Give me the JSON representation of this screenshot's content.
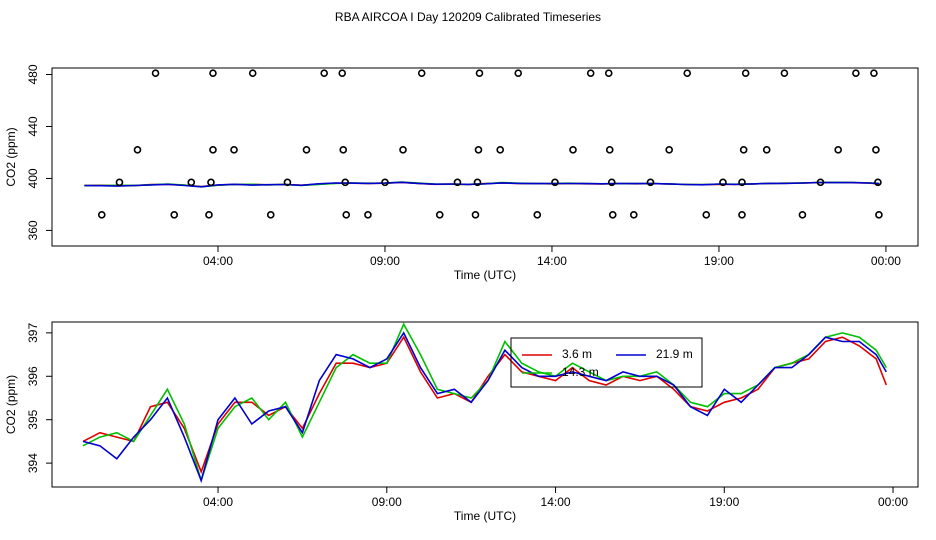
{
  "title": "RBA AIRCOA I  Day 120209  Calibrated Timeseries",
  "chart_data": [
    {
      "type": "scatter",
      "xlabel": "Time (UTC)",
      "ylabel": "CO2 (ppm)",
      "color": "#000000",
      "xlim": [
        -0.97,
        24.96
      ],
      "ylim": [
        348,
        485
      ],
      "yticks": [
        360,
        400,
        440,
        480
      ],
      "xticks": [
        {
          "value": 4,
          "label": "04:00"
        },
        {
          "value": 9,
          "label": "09:00"
        },
        {
          "value": 14,
          "label": "14:00"
        },
        {
          "value": 19,
          "label": "19:00"
        },
        {
          "value": 24,
          "label": "00:00"
        }
      ],
      "x": [
        0.52,
        2.69,
        3.73,
        5.58,
        7.84,
        8.49,
        10.64,
        11.71,
        13.56,
        15.82,
        16.45,
        18.62,
        19.69,
        21.5,
        23.79,
        1.05,
        3.2,
        3.79,
        6.08,
        7.81,
        9.0,
        11.17,
        11.77,
        14.09,
        15.79,
        16.95,
        19.12,
        19.69,
        22.04,
        23.76,
        1.59,
        3.85,
        4.48,
        6.65,
        7.75,
        9.54,
        11.8,
        12.45,
        14.63,
        15.73,
        17.51,
        19.74,
        20.43,
        22.57,
        23.7,
        2.13,
        3.85,
        5.04,
        7.18,
        7.72,
        10.1,
        11.83,
        12.99,
        15.16,
        15.7,
        18.05,
        19.8,
        20.96,
        23.1,
        23.64
      ],
      "values": [
        372,
        372,
        372,
        372,
        372,
        372,
        372,
        372,
        372,
        372,
        372,
        372,
        372,
        372,
        372,
        397,
        397,
        397,
        397,
        397,
        397,
        397,
        397,
        397,
        397,
        397,
        397,
        397,
        397,
        397,
        422,
        422,
        422,
        422,
        422,
        422,
        422,
        422,
        422,
        422,
        422,
        422,
        422,
        422,
        422,
        481,
        481,
        481,
        481,
        481,
        481,
        481,
        481,
        481,
        481,
        481,
        481,
        481,
        481,
        481
      ]
    },
    {
      "type": "line",
      "xlabel": "Time (UTC)",
      "ylabel": "CO2 (ppm)",
      "xlim": [
        -0.92,
        24.74
      ],
      "ylim": [
        393.45,
        397.25
      ],
      "yticks": [
        394,
        395,
        396,
        397
      ],
      "xticks": [
        {
          "value": 4,
          "label": "04:00"
        },
        {
          "value": 9,
          "label": "09:00"
        },
        {
          "value": 14,
          "label": "14:00"
        },
        {
          "value": 19,
          "label": "19:00"
        },
        {
          "value": 24,
          "label": "00:00"
        }
      ],
      "x": [
        0,
        0.5,
        1,
        1.5,
        2,
        2.5,
        3,
        3.5,
        4,
        4.5,
        5,
        5.5,
        6,
        6.5,
        7,
        7.5,
        8,
        8.5,
        9,
        9.5,
        10,
        10.5,
        11,
        11.5,
        12,
        12.5,
        13,
        13.5,
        14,
        14.5,
        15,
        15.5,
        16,
        16.5,
        17,
        17.5,
        18,
        18.5,
        19,
        19.5,
        20,
        20.5,
        21,
        21.5,
        22,
        22.5,
        23,
        23.5,
        23.8
      ],
      "series": [
        {
          "name": "3.6 m",
          "color": "#e00000",
          "values": [
            394.5,
            394.7,
            394.6,
            394.5,
            395.3,
            395.4,
            394.8,
            393.8,
            394.9,
            395.4,
            395.4,
            395.1,
            395.3,
            394.8,
            395.6,
            396.3,
            396.3,
            396.2,
            396.3,
            396.9,
            396.1,
            395.5,
            395.6,
            395.4,
            396.0,
            396.5,
            396.1,
            396.0,
            395.9,
            396.2,
            395.9,
            395.8,
            396.0,
            395.9,
            396.0,
            395.7,
            395.3,
            395.2,
            395.4,
            395.5,
            395.7,
            396.2,
            396.3,
            396.4,
            396.8,
            396.9,
            396.7,
            396.4,
            395.8
          ]
        },
        {
          "name": "14.3 m",
          "color": "#00c000",
          "values": [
            394.4,
            394.6,
            394.7,
            394.5,
            395.1,
            395.7,
            394.9,
            393.6,
            394.8,
            395.3,
            395.5,
            395.0,
            395.4,
            394.6,
            395.4,
            396.2,
            396.5,
            396.3,
            396.3,
            397.2,
            396.5,
            395.7,
            395.6,
            395.5,
            395.9,
            396.8,
            396.3,
            396.1,
            396.0,
            396.3,
            396.1,
            395.9,
            396.0,
            396.0,
            396.1,
            395.8,
            395.4,
            395.3,
            395.6,
            395.6,
            395.8,
            396.2,
            396.3,
            396.5,
            396.9,
            397.0,
            396.9,
            396.6,
            396.2
          ]
        },
        {
          "name": "21.9 m",
          "color": "#0000d0",
          "values": [
            394.5,
            394.4,
            394.1,
            394.6,
            395.0,
            395.5,
            394.6,
            393.6,
            395.0,
            395.5,
            394.9,
            395.2,
            395.3,
            394.7,
            395.9,
            396.5,
            396.4,
            396.2,
            396.4,
            397.0,
            396.2,
            395.6,
            395.7,
            395.4,
            395.9,
            396.6,
            396.2,
            396.0,
            396.0,
            396.1,
            396.0,
            395.9,
            396.1,
            396.0,
            396.0,
            395.8,
            395.3,
            395.1,
            395.7,
            395.4,
            395.8,
            396.2,
            396.2,
            396.5,
            396.9,
            396.8,
            396.8,
            396.5,
            396.1
          ]
        }
      ]
    }
  ]
}
